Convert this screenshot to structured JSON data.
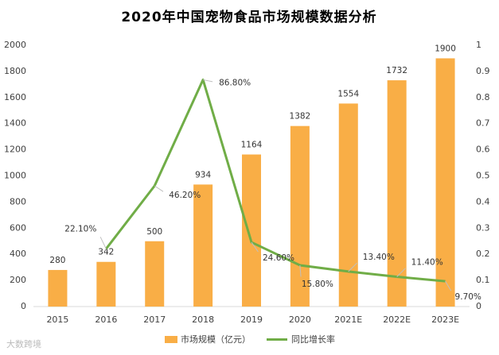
{
  "chart_data": {
    "type": "bar-line",
    "title": "2020年中国宠物食品市场规模数据分析",
    "categories": [
      "2015",
      "2016",
      "2017",
      "2018",
      "2019",
      "2020",
      "2021E",
      "2022E",
      "2023E"
    ],
    "series": [
      {
        "name": "市场规模（亿元）",
        "color": "#f9ae46",
        "type": "bar",
        "values": [
          280,
          342,
          500,
          934,
          1164,
          1382,
          1554,
          1732,
          1900
        ]
      },
      {
        "name": "同比增长率",
        "color": "#70ad47",
        "type": "line",
        "axis": "y2",
        "values": [
          null,
          0.221,
          0.462,
          0.868,
          0.246,
          0.158,
          0.134,
          0.114,
          0.097
        ],
        "value_labels": [
          null,
          "22.10%",
          "46.20%",
          "86.80%",
          "24.60%",
          "15.80%",
          "13.40%",
          "11.40%",
          "9.70%"
        ]
      }
    ],
    "ylim": [
      0,
      2000
    ],
    "yticks": [
      0,
      200,
      400,
      600,
      800,
      1000,
      1200,
      1400,
      1600,
      1800,
      2000
    ],
    "y2lim": [
      0,
      1
    ],
    "y2ticks": [
      0,
      0.1,
      0.2,
      0.3,
      0.4,
      0.5,
      0.6,
      0.7,
      0.8,
      0.9,
      1
    ],
    "grid": false,
    "legend": "bottom",
    "watermark": "大数跨境"
  }
}
